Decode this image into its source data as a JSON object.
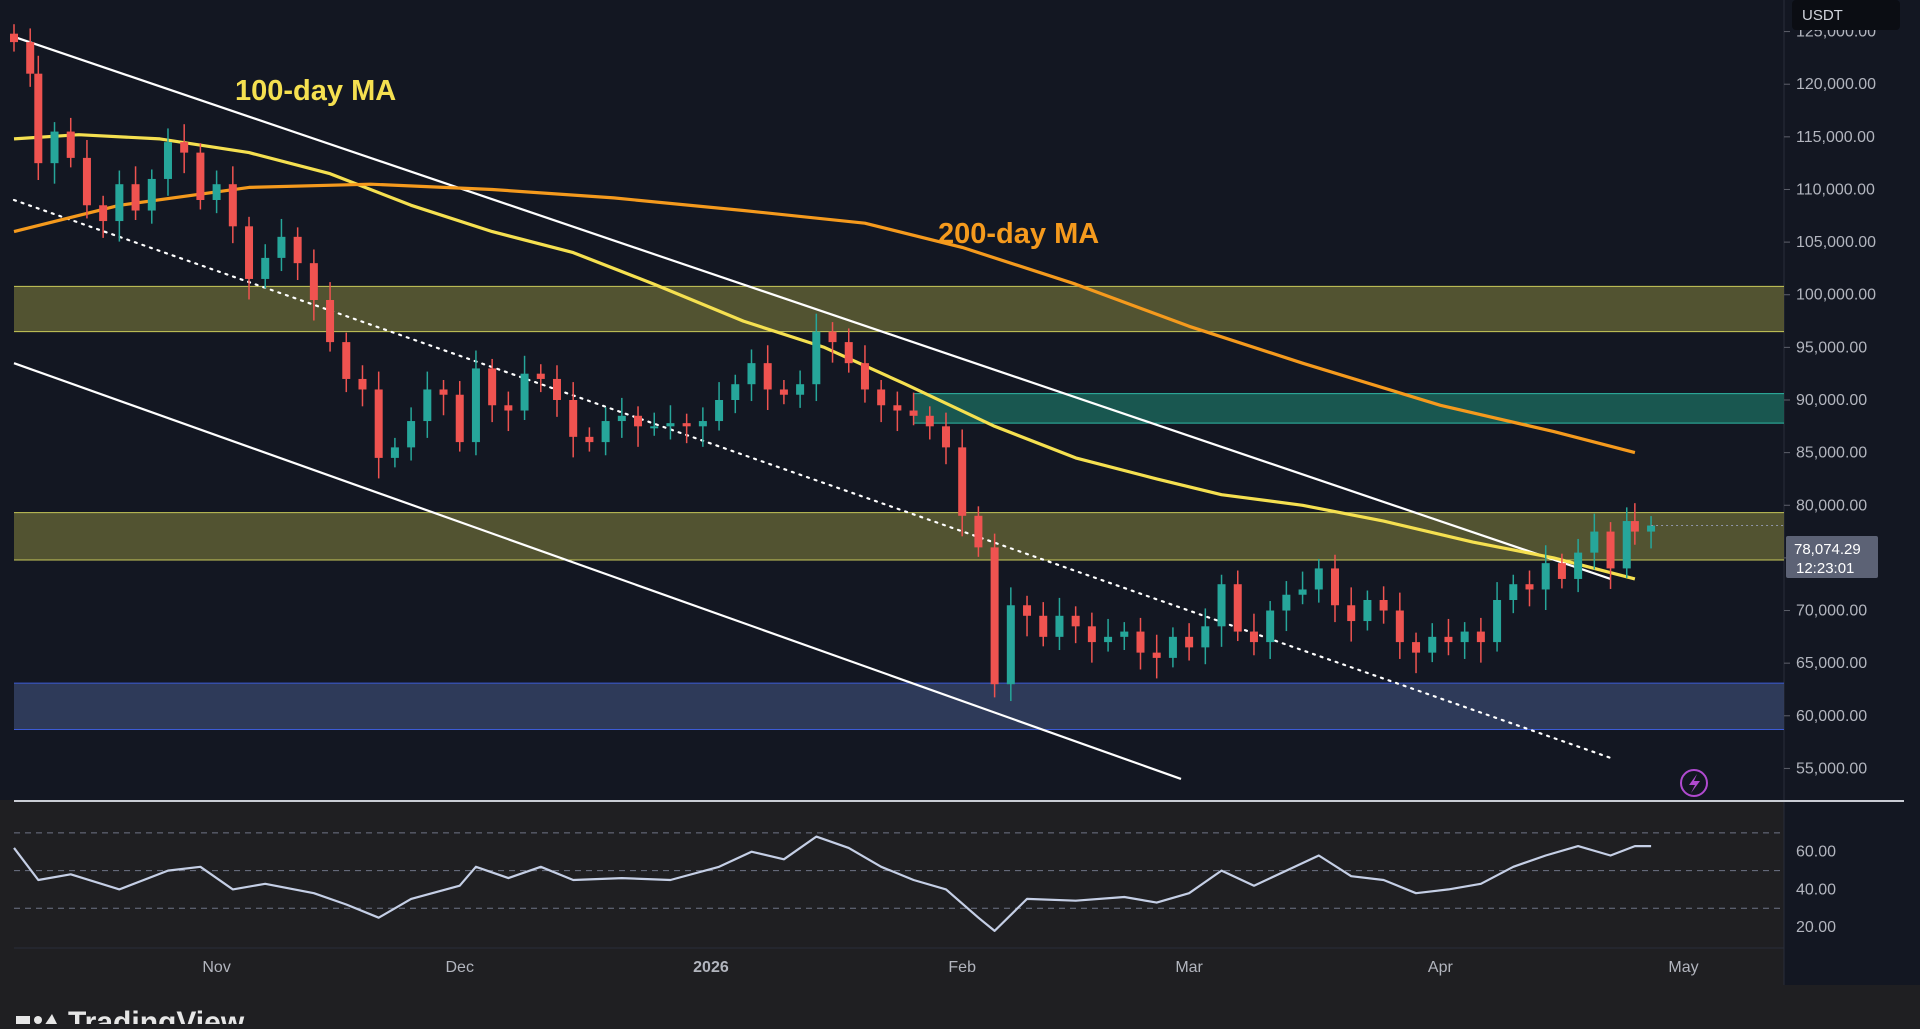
{
  "header": {
    "currency": "USDT"
  },
  "price_label": {
    "price": "78,074.29",
    "countdown": "12:23:01"
  },
  "annotations": {
    "ma100_label": "100-day MA",
    "ma200_label": "200-day MA"
  },
  "footer": {
    "brand": "TradingView"
  },
  "colors": {
    "background": "#131722",
    "up": "#26a69a",
    "down": "#ef5350",
    "ma100": "#f5e050",
    "ma200": "#f59a1d",
    "zone_yellow": "#5a5a33",
    "zone_green": "#1b5e55",
    "zone_blue": "#323e5f",
    "rsi": "#c5cfe6",
    "text": "#b2b5be"
  },
  "chart_data": {
    "type": "candlestick",
    "symbol_currency": "USDT",
    "price_axis": {
      "ticks": [
        "125,000.00",
        "120,000.00",
        "115,000.00",
        "110,000.00",
        "105,000.00",
        "100,000.00",
        "95,000.00",
        "90,000.00",
        "85,000.00",
        "80,000.00",
        "75,000.00",
        "70,000.00",
        "65,000.00",
        "60,000.00",
        "55,000.00"
      ],
      "range": [
        52000,
        128000
      ]
    },
    "time_axis": {
      "labels": [
        "Nov",
        "Dec",
        "2026",
        "Feb",
        "Mar",
        "Apr",
        "May"
      ],
      "range": [
        "2025-10-07",
        "2026-05-06"
      ]
    },
    "last_price": 78074.29,
    "moving_averages": [
      {
        "name": "100-day MA",
        "color": "#f5e050",
        "points": [
          [
            "2025-10-07",
            114800
          ],
          [
            "2025-10-15",
            115200
          ],
          [
            "2025-10-25",
            114800
          ],
          [
            "2025-11-05",
            113500
          ],
          [
            "2025-11-15",
            111500
          ],
          [
            "2025-11-25",
            108500
          ],
          [
            "2025-12-05",
            106000
          ],
          [
            "2025-12-15",
            104000
          ],
          [
            "2025-12-25",
            101000
          ],
          [
            "2026-01-05",
            97500
          ],
          [
            "2026-01-15",
            95000
          ],
          [
            "2026-01-25",
            91500
          ],
          [
            "2026-02-05",
            87500
          ],
          [
            "2026-02-15",
            84500
          ],
          [
            "2026-02-25",
            82500
          ],
          [
            "2026-03-05",
            81000
          ],
          [
            "2026-03-15",
            80000
          ],
          [
            "2026-03-25",
            78500
          ],
          [
            "2026-04-05",
            76500
          ],
          [
            "2026-04-15",
            75000
          ],
          [
            "2026-04-25",
            73000
          ]
        ]
      },
      {
        "name": "200-day MA",
        "color": "#f59a1d",
        "points": [
          [
            "2025-10-07",
            106000
          ],
          [
            "2025-10-20",
            108500
          ],
          [
            "2025-11-05",
            110200
          ],
          [
            "2025-11-20",
            110500
          ],
          [
            "2025-12-05",
            110000
          ],
          [
            "2025-12-20",
            109200
          ],
          [
            "2026-01-05",
            108000
          ],
          [
            "2026-01-20",
            106800
          ],
          [
            "2026-02-01",
            104500
          ],
          [
            "2026-02-15",
            101000
          ],
          [
            "2026-03-01",
            97000
          ],
          [
            "2026-03-15",
            93500
          ],
          [
            "2026-04-01",
            89500
          ],
          [
            "2026-04-15",
            87000
          ],
          [
            "2026-04-25",
            85000
          ]
        ]
      }
    ],
    "zones": [
      {
        "name": "resistance-upper",
        "from": 96500,
        "to": 100800,
        "color": "#5a5a33"
      },
      {
        "name": "fvg-green",
        "from": 87800,
        "to": 90600,
        "color": "#1b5e55",
        "start": "2026-01-26"
      },
      {
        "name": "resistance-lower",
        "from": 74800,
        "to": 79300,
        "color": "#5a5a33"
      },
      {
        "name": "support-blue",
        "from": 58700,
        "to": 63100,
        "color": "#323e5f"
      }
    ],
    "trendlines": [
      {
        "name": "channel-upper",
        "style": "solid",
        "from": [
          "2025-10-07",
          124500
        ],
        "to": [
          "2026-04-22",
          73000
        ]
      },
      {
        "name": "channel-lower",
        "style": "solid",
        "from": [
          "2025-10-07",
          93500
        ],
        "to": [
          "2026-02-28",
          54000
        ]
      },
      {
        "name": "channel-mid",
        "style": "dotted",
        "from": [
          "2025-10-07",
          109000
        ],
        "to": [
          "2026-04-22",
          56000
        ]
      }
    ],
    "candles_close": [
      [
        "2025-10-07",
        124000
      ],
      [
        "2025-10-09",
        121000
      ],
      [
        "2025-10-10",
        112500
      ],
      [
        "2025-10-12",
        115500
      ],
      [
        "2025-10-14",
        113000
      ],
      [
        "2025-10-16",
        108500
      ],
      [
        "2025-10-18",
        107000
      ],
      [
        "2025-10-20",
        110500
      ],
      [
        "2025-10-22",
        108000
      ],
      [
        "2025-10-24",
        111000
      ],
      [
        "2025-10-26",
        114500
      ],
      [
        "2025-10-28",
        113500
      ],
      [
        "2025-10-30",
        109000
      ],
      [
        "2025-11-01",
        110500
      ],
      [
        "2025-11-03",
        106500
      ],
      [
        "2025-11-05",
        101500
      ],
      [
        "2025-11-07",
        103500
      ],
      [
        "2025-11-09",
        105500
      ],
      [
        "2025-11-11",
        103000
      ],
      [
        "2025-11-13",
        99500
      ],
      [
        "2025-11-15",
        95500
      ],
      [
        "2025-11-17",
        92000
      ],
      [
        "2025-11-19",
        91000
      ],
      [
        "2025-11-21",
        84500
      ],
      [
        "2025-11-23",
        85500
      ],
      [
        "2025-11-25",
        88000
      ],
      [
        "2025-11-27",
        91000
      ],
      [
        "2025-11-29",
        90500
      ],
      [
        "2025-12-01",
        86000
      ],
      [
        "2025-12-03",
        93000
      ],
      [
        "2025-12-05",
        89500
      ],
      [
        "2025-12-07",
        89000
      ],
      [
        "2025-12-09",
        92500
      ],
      [
        "2025-12-11",
        92000
      ],
      [
        "2025-12-13",
        90000
      ],
      [
        "2025-12-15",
        86500
      ],
      [
        "2025-12-17",
        86000
      ],
      [
        "2025-12-19",
        88000
      ],
      [
        "2025-12-21",
        88500
      ],
      [
        "2025-12-23",
        87500
      ],
      [
        "2025-12-25",
        87500
      ],
      [
        "2025-12-27",
        87800
      ],
      [
        "2025-12-29",
        87500
      ],
      [
        "2025-12-31",
        88000
      ],
      [
        "2026-01-02",
        90000
      ],
      [
        "2026-01-04",
        91500
      ],
      [
        "2026-01-06",
        93500
      ],
      [
        "2026-01-08",
        91000
      ],
      [
        "2026-01-10",
        90500
      ],
      [
        "2026-01-12",
        91500
      ],
      [
        "2026-01-14",
        96500
      ],
      [
        "2026-01-16",
        95500
      ],
      [
        "2026-01-18",
        93500
      ],
      [
        "2026-01-20",
        91000
      ],
      [
        "2026-01-22",
        89500
      ],
      [
        "2026-01-24",
        89000
      ],
      [
        "2026-01-26",
        88500
      ],
      [
        "2026-01-28",
        87500
      ],
      [
        "2026-01-30",
        85500
      ],
      [
        "2026-02-01",
        79000
      ],
      [
        "2026-02-03",
        76000
      ],
      [
        "2026-02-05",
        63000
      ],
      [
        "2026-02-07",
        70500
      ],
      [
        "2026-02-09",
        69500
      ],
      [
        "2026-02-11",
        67500
      ],
      [
        "2026-02-13",
        69500
      ],
      [
        "2026-02-15",
        68500
      ],
      [
        "2026-02-17",
        67000
      ],
      [
        "2026-02-19",
        67500
      ],
      [
        "2026-02-21",
        68000
      ],
      [
        "2026-02-23",
        66000
      ],
      [
        "2026-02-25",
        65500
      ],
      [
        "2026-02-27",
        67500
      ],
      [
        "2026-03-01",
        66500
      ],
      [
        "2026-03-03",
        68500
      ],
      [
        "2026-03-05",
        72500
      ],
      [
        "2026-03-07",
        68000
      ],
      [
        "2026-03-09",
        67000
      ],
      [
        "2026-03-11",
        70000
      ],
      [
        "2026-03-13",
        71500
      ],
      [
        "2026-03-15",
        72000
      ],
      [
        "2026-03-17",
        74000
      ],
      [
        "2026-03-19",
        70500
      ],
      [
        "2026-03-21",
        69000
      ],
      [
        "2026-03-23",
        71000
      ],
      [
        "2026-03-25",
        70000
      ],
      [
        "2026-03-27",
        67000
      ],
      [
        "2026-03-29",
        66000
      ],
      [
        "2026-03-31",
        67500
      ],
      [
        "2026-04-02",
        67000
      ],
      [
        "2026-04-04",
        68000
      ],
      [
        "2026-04-06",
        67000
      ],
      [
        "2026-04-08",
        71000
      ],
      [
        "2026-04-10",
        72500
      ],
      [
        "2026-04-12",
        72000
      ],
      [
        "2026-04-14",
        74500
      ],
      [
        "2026-04-16",
        73000
      ],
      [
        "2026-04-18",
        75500
      ],
      [
        "2026-04-20",
        77500
      ],
      [
        "2026-04-22",
        74000
      ],
      [
        "2026-04-24",
        78500
      ],
      [
        "2026-04-25",
        77500
      ],
      [
        "2026-04-27",
        78074
      ]
    ],
    "rsi": {
      "ticks": [
        "60.00",
        "40.00",
        "20.00"
      ],
      "levels": [
        70,
        50,
        30
      ],
      "values": [
        [
          "2025-10-07",
          62
        ],
        [
          "2025-10-10",
          45
        ],
        [
          "2025-10-14",
          48
        ],
        [
          "2025-10-20",
          40
        ],
        [
          "2025-10-26",
          50
        ],
        [
          "2025-10-30",
          52
        ],
        [
          "2025-11-03",
          40
        ],
        [
          "2025-11-07",
          43
        ],
        [
          "2025-11-13",
          38
        ],
        [
          "2025-11-17",
          32
        ],
        [
          "2025-11-21",
          25
        ],
        [
          "2025-11-25",
          35
        ],
        [
          "2025-12-01",
          42
        ],
        [
          "2025-12-03",
          52
        ],
        [
          "2025-12-07",
          46
        ],
        [
          "2025-12-11",
          52
        ],
        [
          "2025-12-15",
          45
        ],
        [
          "2025-12-21",
          46
        ],
        [
          "2025-12-27",
          45
        ],
        [
          "2026-01-02",
          52
        ],
        [
          "2026-01-06",
          60
        ],
        [
          "2026-01-10",
          56
        ],
        [
          "2026-01-14",
          68
        ],
        [
          "2026-01-18",
          62
        ],
        [
          "2026-01-22",
          52
        ],
        [
          "2026-01-26",
          45
        ],
        [
          "2026-01-30",
          40
        ],
        [
          "2026-02-03",
          25
        ],
        [
          "2026-02-05",
          18
        ],
        [
          "2026-02-09",
          35
        ],
        [
          "2026-02-15",
          34
        ],
        [
          "2026-02-21",
          36
        ],
        [
          "2026-02-25",
          33
        ],
        [
          "2026-03-01",
          38
        ],
        [
          "2026-03-05",
          50
        ],
        [
          "2026-03-09",
          42
        ],
        [
          "2026-03-13",
          50
        ],
        [
          "2026-03-17",
          58
        ],
        [
          "2026-03-21",
          47
        ],
        [
          "2026-03-25",
          45
        ],
        [
          "2026-03-29",
          38
        ],
        [
          "2026-04-02",
          40
        ],
        [
          "2026-04-06",
          43
        ],
        [
          "2026-04-10",
          52
        ],
        [
          "2026-04-14",
          58
        ],
        [
          "2026-04-18",
          63
        ],
        [
          "2026-04-22",
          58
        ],
        [
          "2026-04-25",
          63
        ],
        [
          "2026-04-27",
          63
        ]
      ]
    }
  }
}
